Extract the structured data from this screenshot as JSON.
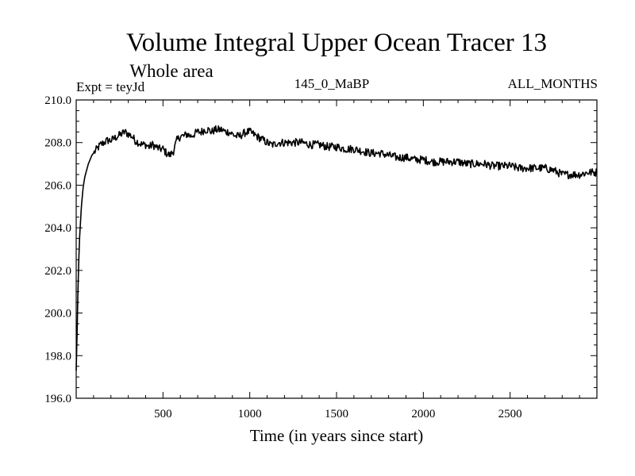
{
  "chart_data": {
    "type": "line",
    "title": "Volume Integral Upper Ocean Tracer 13",
    "subtitle": "Whole area",
    "expt_label": "Expt = teyJd",
    "center_label": "145_0_MaBP",
    "right_label": "ALL_MONTHS",
    "xlabel": "Time (in years since start)",
    "ylabel": "",
    "xlim": [
      0,
      3000
    ],
    "ylim": [
      196.0,
      210.0
    ],
    "x_ticks": [
      500,
      1000,
      1500,
      2000,
      2500
    ],
    "x_tick_labels": [
      "500",
      "1000",
      "1500",
      "2000",
      "2500"
    ],
    "y_ticks": [
      196,
      198,
      200,
      202,
      204,
      206,
      208,
      210
    ],
    "y_tick_labels": [
      "196.0",
      "198.0",
      "200.0",
      "202.0",
      "204.0",
      "206.0",
      "208.0",
      "210.0"
    ],
    "grid": false,
    "legend": "none",
    "series": [
      {
        "color": "#000000",
        "x": [
          0,
          5,
          10,
          15,
          20,
          30,
          40,
          50,
          60,
          70,
          80,
          90,
          100,
          120,
          140,
          160,
          180,
          200,
          220,
          240,
          260,
          280,
          300,
          320,
          340,
          360,
          380,
          400,
          420,
          440,
          460,
          480,
          500,
          520,
          540,
          560,
          580,
          600,
          620,
          640,
          660,
          680,
          700,
          720,
          740,
          760,
          780,
          800,
          820,
          840,
          860,
          880,
          900,
          920,
          940,
          960,
          980,
          1000,
          1020,
          1040,
          1060,
          1080,
          1100,
          1120,
          1140,
          1160,
          1180,
          1200,
          1250,
          1300,
          1350,
          1400,
          1450,
          1500,
          1550,
          1600,
          1650,
          1700,
          1750,
          1800,
          1850,
          1900,
          1950,
          2000,
          2050,
          2100,
          2150,
          2200,
          2250,
          2300,
          2350,
          2400,
          2450,
          2500,
          2550,
          2600,
          2650,
          2700,
          2750,
          2800,
          2850,
          2900,
          2950,
          3000
        ],
        "y": [
          197.3,
          199.0,
          201.0,
          202.5,
          203.6,
          205.0,
          205.9,
          206.4,
          206.7,
          207.0,
          207.2,
          207.4,
          207.5,
          207.7,
          207.9,
          208.0,
          208.1,
          208.1,
          208.2,
          208.3,
          208.4,
          208.5,
          208.4,
          208.3,
          208.1,
          208.0,
          207.9,
          207.9,
          207.8,
          207.9,
          207.8,
          207.7,
          207.7,
          207.5,
          207.4,
          207.6,
          208.1,
          208.3,
          208.3,
          208.4,
          208.3,
          208.4,
          208.5,
          208.5,
          208.6,
          208.6,
          208.5,
          208.6,
          208.6,
          208.6,
          208.5,
          208.5,
          208.4,
          208.3,
          208.3,
          208.4,
          208.5,
          208.5,
          208.4,
          208.3,
          208.2,
          208.1,
          208.0,
          207.9,
          207.9,
          208.0,
          208.0,
          208.0,
          208.0,
          208.0,
          207.9,
          207.9,
          207.8,
          207.8,
          207.7,
          207.7,
          207.6,
          207.5,
          207.5,
          207.4,
          207.3,
          207.3,
          207.2,
          207.2,
          207.1,
          207.1,
          207.1,
          207.1,
          207.0,
          207.0,
          207.0,
          206.9,
          206.9,
          206.9,
          206.8,
          206.8,
          206.8,
          206.8,
          206.7,
          206.5,
          206.5,
          206.5,
          206.6,
          206.6
        ]
      }
    ]
  }
}
